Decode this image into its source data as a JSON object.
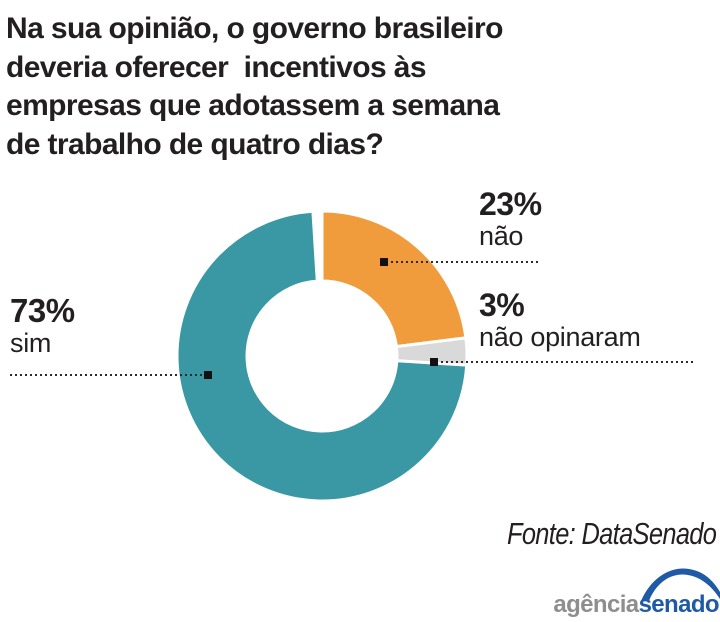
{
  "title": {
    "lines": [
      "Na sua opinião, o governo brasileiro",
      "deveria oferecer  incentivos às",
      "empresas que adotassem a semana",
      "de trabalho de quatro dias?"
    ]
  },
  "chart_data": {
    "type": "pie",
    "subtype": "donut",
    "start_angle": "top",
    "direction": "clockwise",
    "hole_ratio": 0.52,
    "slices": [
      {
        "label": "não",
        "value": 23,
        "pct_label": "23%",
        "color": "#f19c3c"
      },
      {
        "label": "não opinaram",
        "value": 3,
        "pct_label": "3%",
        "color": "#d9d9d9"
      },
      {
        "label": "sim",
        "value": 73,
        "pct_label": "73%",
        "color": "#3a98a4"
      }
    ]
  },
  "source": {
    "text": "Fonte: DataSenado"
  },
  "logo": {
    "part1": "agência",
    "part2": "senado",
    "gray": "#8e8e8e",
    "blue": "#1e5aa5"
  }
}
